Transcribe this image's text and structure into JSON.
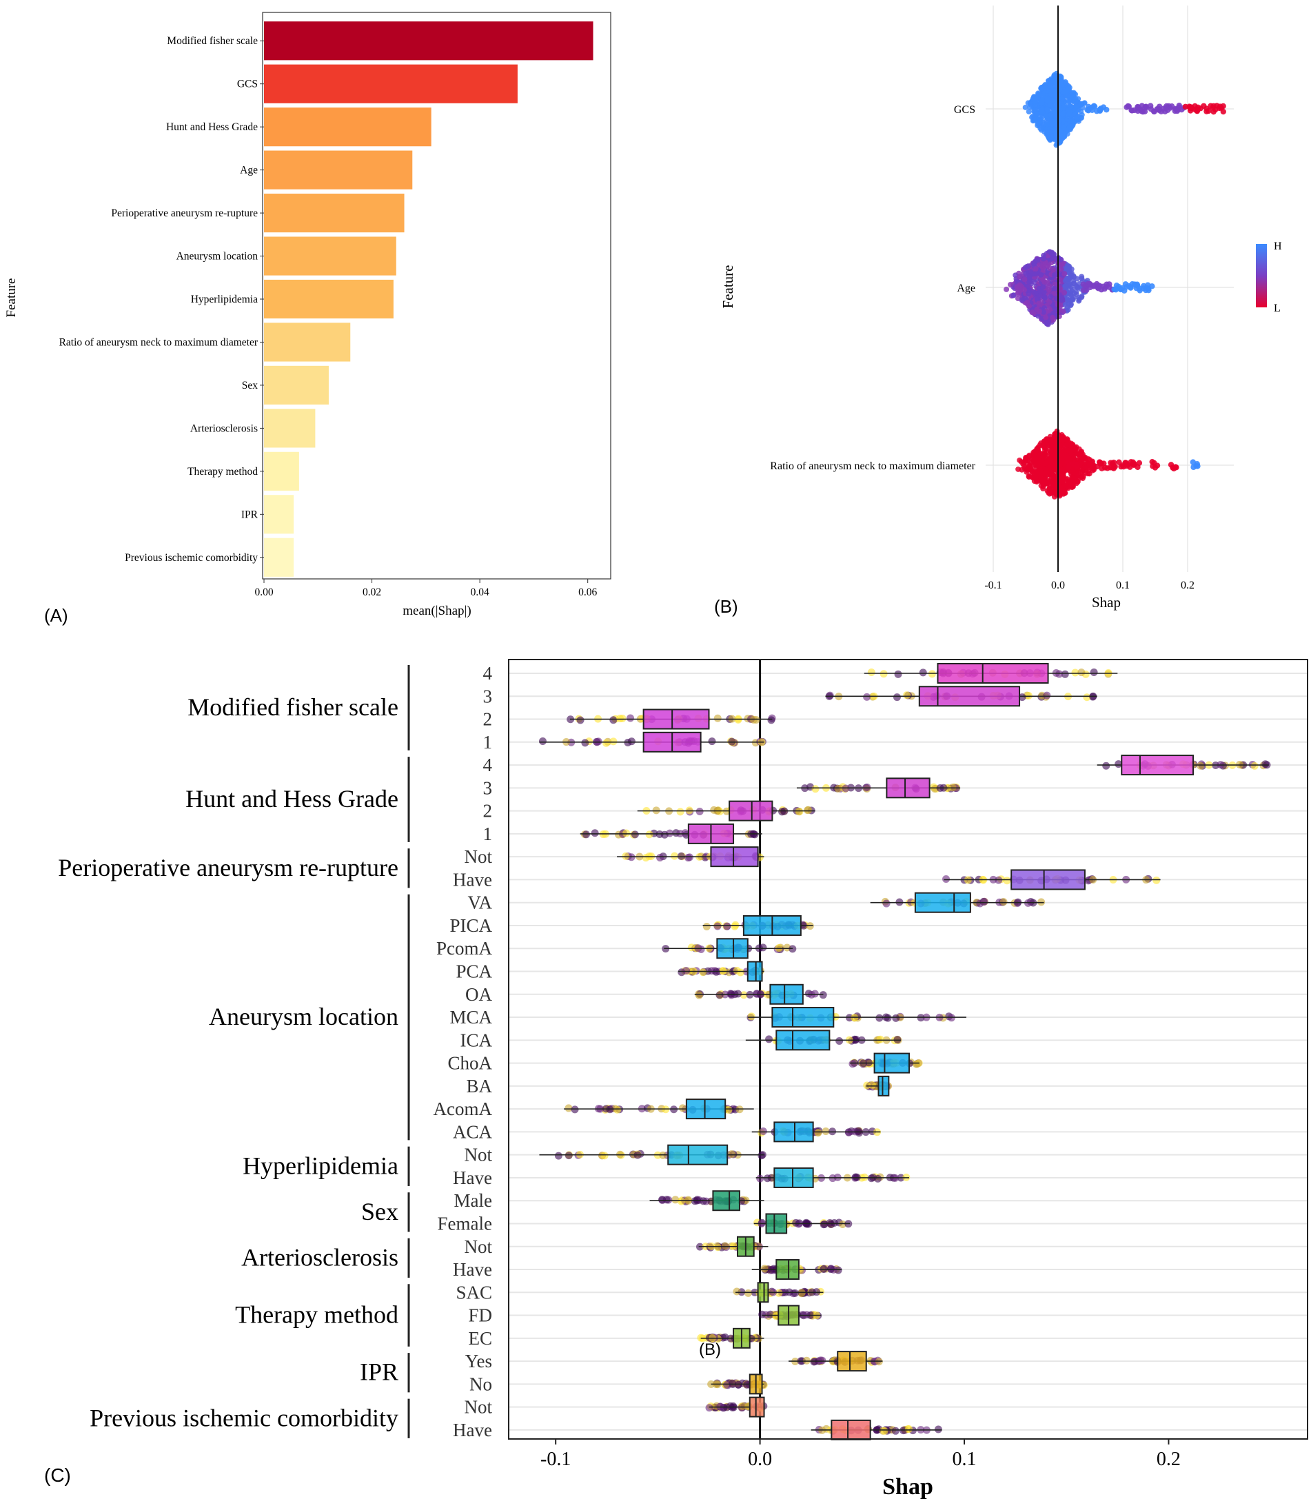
{
  "panel_labels": {
    "a": "(A)",
    "b": "(B)",
    "c": "(C)",
    "c_stray": "(B)"
  },
  "colors": {
    "bar_ramp": [
      "#b30022",
      "#ef3b2c",
      "#fd9a44",
      "#fdad4f",
      "#fdd27a",
      "#fff1a8",
      "#fffbcc"
    ],
    "hi": "#3b8bff",
    "lo": "#e8002d",
    "mid": "#7b3fc4",
    "point_dark": "#3e0a55",
    "point_gold": "#c9a632",
    "point_yellow": "#ffe433"
  },
  "chart_data": [
    {
      "id": "A",
      "type": "bar",
      "orientation": "horizontal",
      "xlabel": "mean(|Shap|)",
      "ylabel": "Feature",
      "xlim": [
        0,
        0.064
      ],
      "xticks": [
        0.0,
        0.02,
        0.04,
        0.06
      ],
      "xtick_labels": [
        "0.00",
        "0.02",
        "0.04",
        "0.06"
      ],
      "categories": [
        "Modified fisher scale",
        "GCS",
        "Hunt and Hess Grade",
        "Age",
        "Perioperative aneurysm re-rupture",
        "Aneurysm location",
        "Hyperlipidemia",
        "Ratio of aneurysm neck to maximum diameter",
        "Sex",
        "Arteriosclerosis",
        "Therapy method",
        "IPR",
        "Previous ischemic comorbidity"
      ],
      "values": [
        0.061,
        0.047,
        0.031,
        0.0275,
        0.026,
        0.0245,
        0.024,
        0.016,
        0.012,
        0.0095,
        0.0065,
        0.0055,
        0.0055
      ],
      "bar_colors": [
        "#b30022",
        "#ef3b2c",
        "#fd9a44",
        "#fda24a",
        "#fdab4f",
        "#fdb456",
        "#fdb858",
        "#fdd27a",
        "#fde08e",
        "#fde99d",
        "#fff3ae",
        "#fff6b8",
        "#fff8c0"
      ]
    },
    {
      "id": "B",
      "type": "scatter",
      "subtype": "beeswarm",
      "xlabel": "Shap",
      "ylabel": "Feature",
      "xlim": [
        -0.12,
        0.27
      ],
      "xticks": [
        -0.1,
        0.0,
        0.1,
        0.2
      ],
      "xtick_labels": [
        "-0.1",
        "0.0",
        "0.1",
        "0.2"
      ],
      "legend": {
        "position": "right",
        "high_label": "H",
        "low_label": "L"
      },
      "series": [
        {
          "name": "GCS",
          "core_center": -0.003,
          "core_halfwidth": 0.035,
          "tail_points": [
            0.05,
            0.06,
            0.07,
            0.11,
            0.12,
            0.13,
            0.14,
            0.15,
            0.16,
            0.17,
            0.18,
            0.19,
            0.2,
            0.21,
            0.22,
            0.23,
            0.24,
            0.25
          ],
          "core_color": "hi",
          "tail_colors": [
            "hi",
            "hi",
            "hi",
            "mid",
            "mid",
            "mid",
            "mid",
            "mid",
            "mid",
            "mid",
            "mid",
            "mid",
            "lo",
            "lo",
            "lo",
            "lo",
            "lo",
            "lo"
          ]
        },
        {
          "name": "Age",
          "core_center": -0.015,
          "core_halfwidth": 0.05,
          "tail_points": [
            0.04,
            0.05,
            0.06,
            0.07,
            0.08,
            0.09,
            0.1,
            0.11,
            0.12,
            0.13,
            0.14
          ],
          "core_color": "mid",
          "tail_colors": [
            "mid",
            "mid",
            "mid",
            "mid",
            "mid",
            "hi",
            "hi",
            "hi",
            "hi",
            "hi",
            "hi"
          ]
        },
        {
          "name": "Ratio of aneurysm neck to maximum diameter",
          "core_center": -0.002,
          "core_halfwidth": 0.045,
          "tail_points": [
            0.02,
            0.03,
            0.04,
            0.05,
            0.06,
            0.07,
            0.08,
            0.09,
            0.1,
            0.11,
            0.12,
            0.15,
            0.18,
            0.21
          ],
          "core_color": "lo",
          "tail_colors": [
            "lo",
            "lo",
            "lo",
            "lo",
            "lo",
            "lo",
            "lo",
            "lo",
            "lo",
            "lo",
            "lo",
            "lo",
            "lo",
            "hi"
          ]
        }
      ]
    },
    {
      "id": "C",
      "type": "box",
      "xlabel": "Shap",
      "xlim": [
        -0.123,
        0.268
      ],
      "xticks": [
        -0.1,
        0.0,
        0.1,
        0.2
      ],
      "xtick_labels": [
        "-0.1",
        "0.0",
        "0.1",
        "0.2"
      ],
      "groups": [
        {
          "name": "Modified fisher scale",
          "levels": [
            "4",
            "3",
            "2",
            "1"
          ]
        },
        {
          "name": "Hunt and Hess Grade",
          "levels": [
            "4",
            "3",
            "2",
            "1"
          ]
        },
        {
          "name": "Perioperative aneurysm re-rupture",
          "levels": [
            "Not",
            "Have"
          ]
        },
        {
          "name": "Aneurysm location",
          "levels": [
            "VA",
            "PICA",
            "PcomA",
            "PCA",
            "OA",
            "MCA",
            "ICA",
            "ChoA",
            "BA",
            "AcomA",
            "ACA"
          ]
        },
        {
          "name": "Hyperlipidemia",
          "levels": [
            "Not",
            "Have"
          ]
        },
        {
          "name": "Sex",
          "levels": [
            "Male",
            "Female"
          ]
        },
        {
          "name": "Arteriosclerosis",
          "levels": [
            "Not",
            "Have"
          ]
        },
        {
          "name": "Therapy method",
          "levels": [
            "SAC",
            "FD",
            "EC"
          ]
        },
        {
          "name": "IPR",
          "levels": [
            "Yes",
            "No"
          ]
        },
        {
          "name": "Previous ischemic comorbidity",
          "levels": [
            "Not",
            "Have"
          ]
        }
      ],
      "rows": [
        {
          "label": "4",
          "q1": 0.087,
          "med": 0.109,
          "q3": 0.141,
          "lo": 0.051,
          "hi": 0.175,
          "color": "#e040c8"
        },
        {
          "label": "3",
          "q1": 0.078,
          "med": 0.087,
          "q3": 0.127,
          "lo": 0.032,
          "hi": 0.165,
          "color": "#d040d0"
        },
        {
          "label": "2",
          "q1": -0.057,
          "med": -0.043,
          "q3": -0.025,
          "lo": -0.093,
          "hi": 0.006,
          "color": "#d040d8"
        },
        {
          "label": "1",
          "q1": -0.057,
          "med": -0.043,
          "q3": -0.029,
          "lo": -0.108,
          "hi": 0.002,
          "color": "#d040d8"
        },
        {
          "label": "4",
          "q1": 0.177,
          "med": 0.186,
          "q3": 0.212,
          "lo": 0.165,
          "hi": 0.249,
          "color": "#e050d8"
        },
        {
          "label": "3",
          "q1": 0.062,
          "med": 0.071,
          "q3": 0.083,
          "lo": 0.018,
          "hi": 0.098,
          "color": "#d040d0"
        },
        {
          "label": "2",
          "q1": -0.015,
          "med": -0.004,
          "q3": 0.006,
          "lo": -0.06,
          "hi": 0.027,
          "color": "#d040d0"
        },
        {
          "label": "1",
          "q1": -0.035,
          "med": -0.024,
          "q3": -0.013,
          "lo": -0.088,
          "hi": 0.001,
          "color": "#d040d0"
        },
        {
          "label": "Not",
          "q1": -0.024,
          "med": -0.013,
          "q3": -0.001,
          "lo": -0.07,
          "hi": 0.002,
          "color": "#a050e0"
        },
        {
          "label": "Have",
          "q1": 0.123,
          "med": 0.139,
          "q3": 0.159,
          "lo": 0.09,
          "hi": 0.196,
          "color": "#9060e0"
        },
        {
          "label": "VA",
          "q1": 0.076,
          "med": 0.095,
          "q3": 0.103,
          "lo": 0.054,
          "hi": 0.139,
          "color": "#19b0ee"
        },
        {
          "label": "PICA",
          "q1": -0.008,
          "med": 0.006,
          "q3": 0.02,
          "lo": -0.028,
          "hi": 0.026,
          "color": "#19b0ee"
        },
        {
          "label": "PcomA",
          "q1": -0.021,
          "med": -0.013,
          "q3": -0.006,
          "lo": -0.047,
          "hi": 0.016,
          "color": "#19b0ee"
        },
        {
          "label": "PCA",
          "q1": -0.006,
          "med": -0.002,
          "q3": 0.001,
          "lo": -0.04,
          "hi": 0.002,
          "color": "#19b0ee"
        },
        {
          "label": "OA",
          "q1": 0.005,
          "med": 0.012,
          "q3": 0.021,
          "lo": -0.032,
          "hi": 0.031,
          "color": "#19b0ee"
        },
        {
          "label": "MCA",
          "q1": 0.006,
          "med": 0.016,
          "q3": 0.036,
          "lo": -0.006,
          "hi": 0.101,
          "color": "#19b0ee"
        },
        {
          "label": "ICA",
          "q1": 0.008,
          "med": 0.016,
          "q3": 0.034,
          "lo": -0.007,
          "hi": 0.069,
          "color": "#19b0ee"
        },
        {
          "label": "ChoA",
          "q1": 0.056,
          "med": 0.061,
          "q3": 0.073,
          "lo": 0.044,
          "hi": 0.078,
          "color": "#19b0ee"
        },
        {
          "label": "BA",
          "q1": 0.058,
          "med": 0.06,
          "q3": 0.063,
          "lo": 0.052,
          "hi": 0.063,
          "color": "#19b0ee"
        },
        {
          "label": "AcomA",
          "q1": -0.036,
          "med": -0.027,
          "q3": -0.017,
          "lo": -0.096,
          "hi": -0.003,
          "color": "#19b0ee"
        },
        {
          "label": "ACA",
          "q1": 0.007,
          "med": 0.017,
          "q3": 0.026,
          "lo": -0.004,
          "hi": 0.059,
          "color": "#19b0ee"
        },
        {
          "label": "Not",
          "q1": -0.045,
          "med": -0.035,
          "q3": -0.016,
          "lo": -0.108,
          "hi": 0.002,
          "color": "#20b8e0"
        },
        {
          "label": "Have",
          "q1": 0.007,
          "med": 0.016,
          "q3": 0.026,
          "lo": -0.002,
          "hi": 0.073,
          "color": "#20b8e0"
        },
        {
          "label": "Male",
          "q1": -0.023,
          "med": -0.015,
          "q3": -0.01,
          "lo": -0.054,
          "hi": 0.002,
          "color": "#20a070"
        },
        {
          "label": "Female",
          "q1": 0.003,
          "med": 0.007,
          "q3": 0.013,
          "lo": -0.003,
          "hi": 0.044,
          "color": "#20a070"
        },
        {
          "label": "Not",
          "q1": -0.011,
          "med": -0.007,
          "q3": -0.003,
          "lo": -0.03,
          "hi": 0.004,
          "color": "#58b040"
        },
        {
          "label": "Have",
          "q1": 0.008,
          "med": 0.014,
          "q3": 0.019,
          "lo": -0.004,
          "hi": 0.04,
          "color": "#58b040"
        },
        {
          "label": "SAC",
          "q1": -0.001,
          "med": 0.002,
          "q3": 0.004,
          "lo": -0.012,
          "hi": 0.031,
          "color": "#8cc43c"
        },
        {
          "label": "FD",
          "q1": 0.009,
          "med": 0.014,
          "q3": 0.019,
          "lo": 0.001,
          "hi": 0.03,
          "color": "#8cc43c"
        },
        {
          "label": "EC",
          "q1": -0.013,
          "med": -0.009,
          "q3": -0.005,
          "lo": -0.029,
          "hi": 0.002,
          "color": "#8cc43c"
        },
        {
          "label": "Yes",
          "q1": 0.038,
          "med": 0.044,
          "q3": 0.052,
          "lo": 0.014,
          "hi": 0.06,
          "color": "#e8b020"
        },
        {
          "label": "No",
          "q1": -0.005,
          "med": -0.002,
          "q3": 0.001,
          "lo": -0.024,
          "hi": 0.002,
          "color": "#e8b020"
        },
        {
          "label": "Not",
          "q1": -0.005,
          "med": -0.002,
          "q3": 0.002,
          "lo": -0.025,
          "hi": 0.002,
          "color": "#f08060"
        },
        {
          "label": "Have",
          "q1": 0.035,
          "med": 0.043,
          "q3": 0.054,
          "lo": 0.025,
          "hi": 0.089,
          "color": "#f07070"
        }
      ]
    }
  ]
}
